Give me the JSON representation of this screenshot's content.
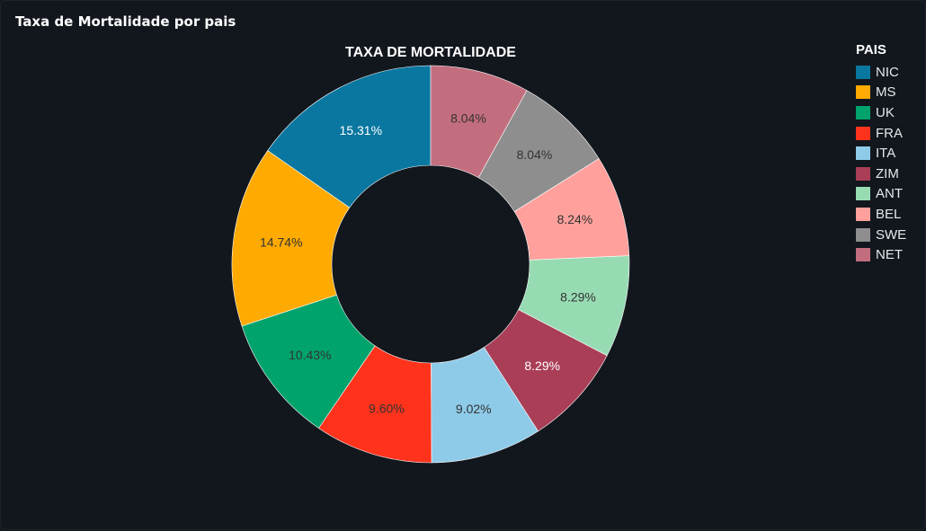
{
  "panel": {
    "title": "Taxa de Mortalidade por pais"
  },
  "chart_data": {
    "type": "pie",
    "title": "TAXA DE MORTALIDADE",
    "legend_title": "PAIS",
    "legend_position": "top-right",
    "hole": true,
    "categories": [
      "NIC",
      "MS",
      "UK",
      "FRA",
      "ITA",
      "ZIM",
      "ANT",
      "BEL",
      "SWE",
      "NET"
    ],
    "values": [
      15.31,
      14.74,
      10.43,
      9.6,
      9.02,
      8.29,
      8.29,
      8.24,
      8.04,
      8.04
    ],
    "labels": [
      "15.31%",
      "14.74%",
      "10.43%",
      "9.60%",
      "9.02%",
      "8.29%",
      "8.29%",
      "8.24%",
      "8.04%",
      "8.04%"
    ],
    "colors": [
      "#0a77a0",
      "#ffaa00",
      "#00a36b",
      "#ff331c",
      "#8ecbe8",
      "#a93e56",
      "#97dbb3",
      "#ffa09c",
      "#8e8e8e",
      "#c36e7e"
    ],
    "label_colors": [
      "#ffffff",
      "#333333",
      "#333333",
      "#333333",
      "#333333",
      "#ffffff",
      "#333333",
      "#333333",
      "#333333",
      "#333333"
    ]
  }
}
